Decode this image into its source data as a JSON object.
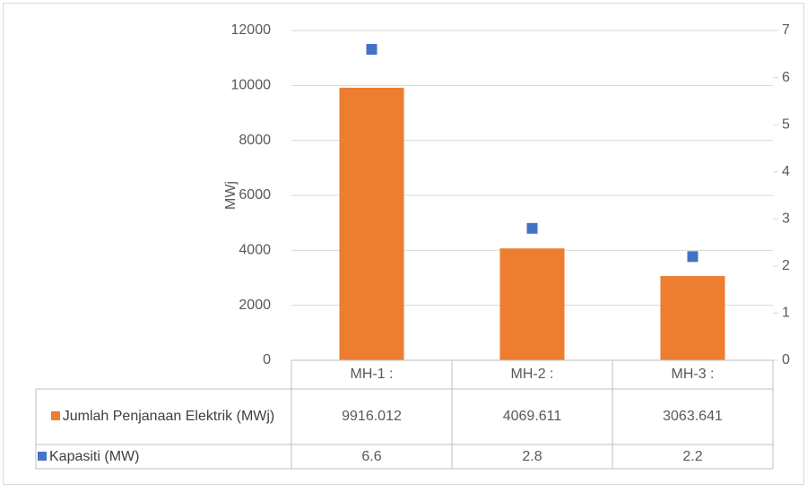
{
  "chart_data": {
    "type": "bar",
    "categories": [
      "MH-1 :",
      "MH-2 :",
      "MH-3 :"
    ],
    "series": [
      {
        "name": "Jumlah Penjanaan Elektrik (MWj)",
        "color": "#ed7d31",
        "values": [
          9916.012,
          4069.611,
          3063.641
        ]
      },
      {
        "name": "Kapasiti (MW)",
        "color": "#4472c4",
        "values": [
          6.6,
          2.8,
          2.2
        ],
        "axis": "y2",
        "type": "scatter"
      }
    ],
    "ylabel": "MWj",
    "ylim": [
      0,
      12000
    ],
    "yticks": [
      0,
      2000,
      4000,
      6000,
      8000,
      10000,
      12000
    ],
    "y2lim": [
      0,
      7
    ],
    "y2ticks": [
      0,
      1,
      2,
      3,
      4,
      5,
      6,
      7
    ],
    "grid": true,
    "data_table": true
  }
}
